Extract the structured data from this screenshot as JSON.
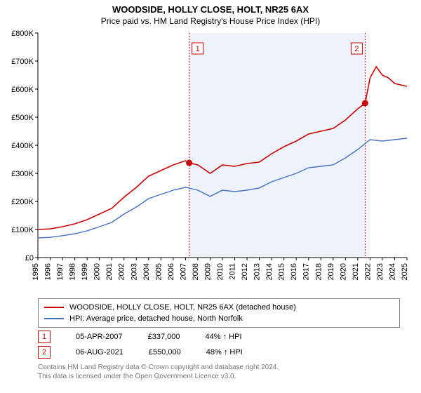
{
  "title": "WOODSIDE, HOLLY CLOSE, HOLT, NR25 6AX",
  "subtitle": "Price paid vs. HM Land Registry's House Price Index (HPI)",
  "chart": {
    "type": "line",
    "background_color": "#ffffff",
    "shade_start_year": 2007.3,
    "shade_end_year": 2021.6,
    "shade_color": "#eef2fa",
    "axis_color": "#000000",
    "ylim": [
      0,
      800000
    ],
    "ytick_step": 100000,
    "yticks": [
      "£0",
      "£100K",
      "£200K",
      "£300K",
      "£400K",
      "£500K",
      "£600K",
      "£700K",
      "£800K"
    ],
    "xlim": [
      1995,
      2025
    ],
    "xticks": [
      1995,
      1996,
      1997,
      1998,
      1999,
      2000,
      2001,
      2002,
      2003,
      2004,
      2005,
      2006,
      2007,
      2008,
      2009,
      2010,
      2011,
      2012,
      2013,
      2014,
      2015,
      2016,
      2017,
      2018,
      2019,
      2020,
      2021,
      2022,
      2023,
      2024,
      2025
    ],
    "series": [
      {
        "name": "WOODSIDE, HOLLY CLOSE, HOLT, NR25 6AX (detached house)",
        "color": "#cc0000",
        "width": 1.6,
        "points": [
          [
            1995,
            100000
          ],
          [
            1996,
            102000
          ],
          [
            1997,
            110000
          ],
          [
            1998,
            120000
          ],
          [
            1999,
            135000
          ],
          [
            2000,
            155000
          ],
          [
            2001,
            175000
          ],
          [
            2002,
            215000
          ],
          [
            2003,
            250000
          ],
          [
            2004,
            290000
          ],
          [
            2005,
            310000
          ],
          [
            2006,
            330000
          ],
          [
            2007,
            345000
          ],
          [
            2007.3,
            337000
          ],
          [
            2008,
            330000
          ],
          [
            2009,
            300000
          ],
          [
            2010,
            330000
          ],
          [
            2011,
            325000
          ],
          [
            2012,
            335000
          ],
          [
            2013,
            340000
          ],
          [
            2014,
            370000
          ],
          [
            2015,
            395000
          ],
          [
            2016,
            415000
          ],
          [
            2017,
            440000
          ],
          [
            2018,
            450000
          ],
          [
            2019,
            460000
          ],
          [
            2020,
            490000
          ],
          [
            2021,
            530000
          ],
          [
            2021.6,
            550000
          ],
          [
            2022,
            640000
          ],
          [
            2022.5,
            680000
          ],
          [
            2023,
            650000
          ],
          [
            2023.5,
            640000
          ],
          [
            2024,
            620000
          ],
          [
            2024.5,
            615000
          ],
          [
            2025,
            610000
          ]
        ]
      },
      {
        "name": "HPI: Average price, detached house, North Norfolk",
        "color": "#4472c4",
        "width": 1.4,
        "points": [
          [
            1995,
            70000
          ],
          [
            1996,
            72000
          ],
          [
            1997,
            78000
          ],
          [
            1998,
            85000
          ],
          [
            1999,
            95000
          ],
          [
            2000,
            110000
          ],
          [
            2001,
            125000
          ],
          [
            2002,
            155000
          ],
          [
            2003,
            180000
          ],
          [
            2004,
            210000
          ],
          [
            2005,
            225000
          ],
          [
            2006,
            240000
          ],
          [
            2007,
            250000
          ],
          [
            2008,
            240000
          ],
          [
            2009,
            218000
          ],
          [
            2010,
            240000
          ],
          [
            2011,
            235000
          ],
          [
            2012,
            240000
          ],
          [
            2013,
            248000
          ],
          [
            2014,
            270000
          ],
          [
            2015,
            285000
          ],
          [
            2016,
            300000
          ],
          [
            2017,
            320000
          ],
          [
            2018,
            325000
          ],
          [
            2019,
            330000
          ],
          [
            2020,
            355000
          ],
          [
            2021,
            385000
          ],
          [
            2022,
            420000
          ],
          [
            2023,
            415000
          ],
          [
            2024,
            420000
          ],
          [
            2025,
            425000
          ]
        ]
      }
    ],
    "markers": [
      {
        "id": "1",
        "year": 2007.3,
        "value": 337000,
        "color": "#cc0000"
      },
      {
        "id": "2",
        "year": 2021.6,
        "value": 550000,
        "color": "#cc0000"
      }
    ]
  },
  "legend": {
    "row1": {
      "label": "WOODSIDE, HOLLY CLOSE, HOLT, NR25 6AX (detached house)"
    },
    "row2": {
      "label": "HPI: Average price, detached house, North Norfolk"
    }
  },
  "annotations": [
    {
      "id": "1",
      "date": "05-APR-2007",
      "price": "£337,000",
      "diff": "44% ↑ HPI"
    },
    {
      "id": "2",
      "date": "06-AUG-2021",
      "price": "£550,000",
      "diff": "48% ↑ HPI"
    }
  ],
  "footer": {
    "line1": "Contains HM Land Registry data © Crown copyright and database right 2024.",
    "line2": "This data is licensed under the Open Government Licence v3.0."
  }
}
